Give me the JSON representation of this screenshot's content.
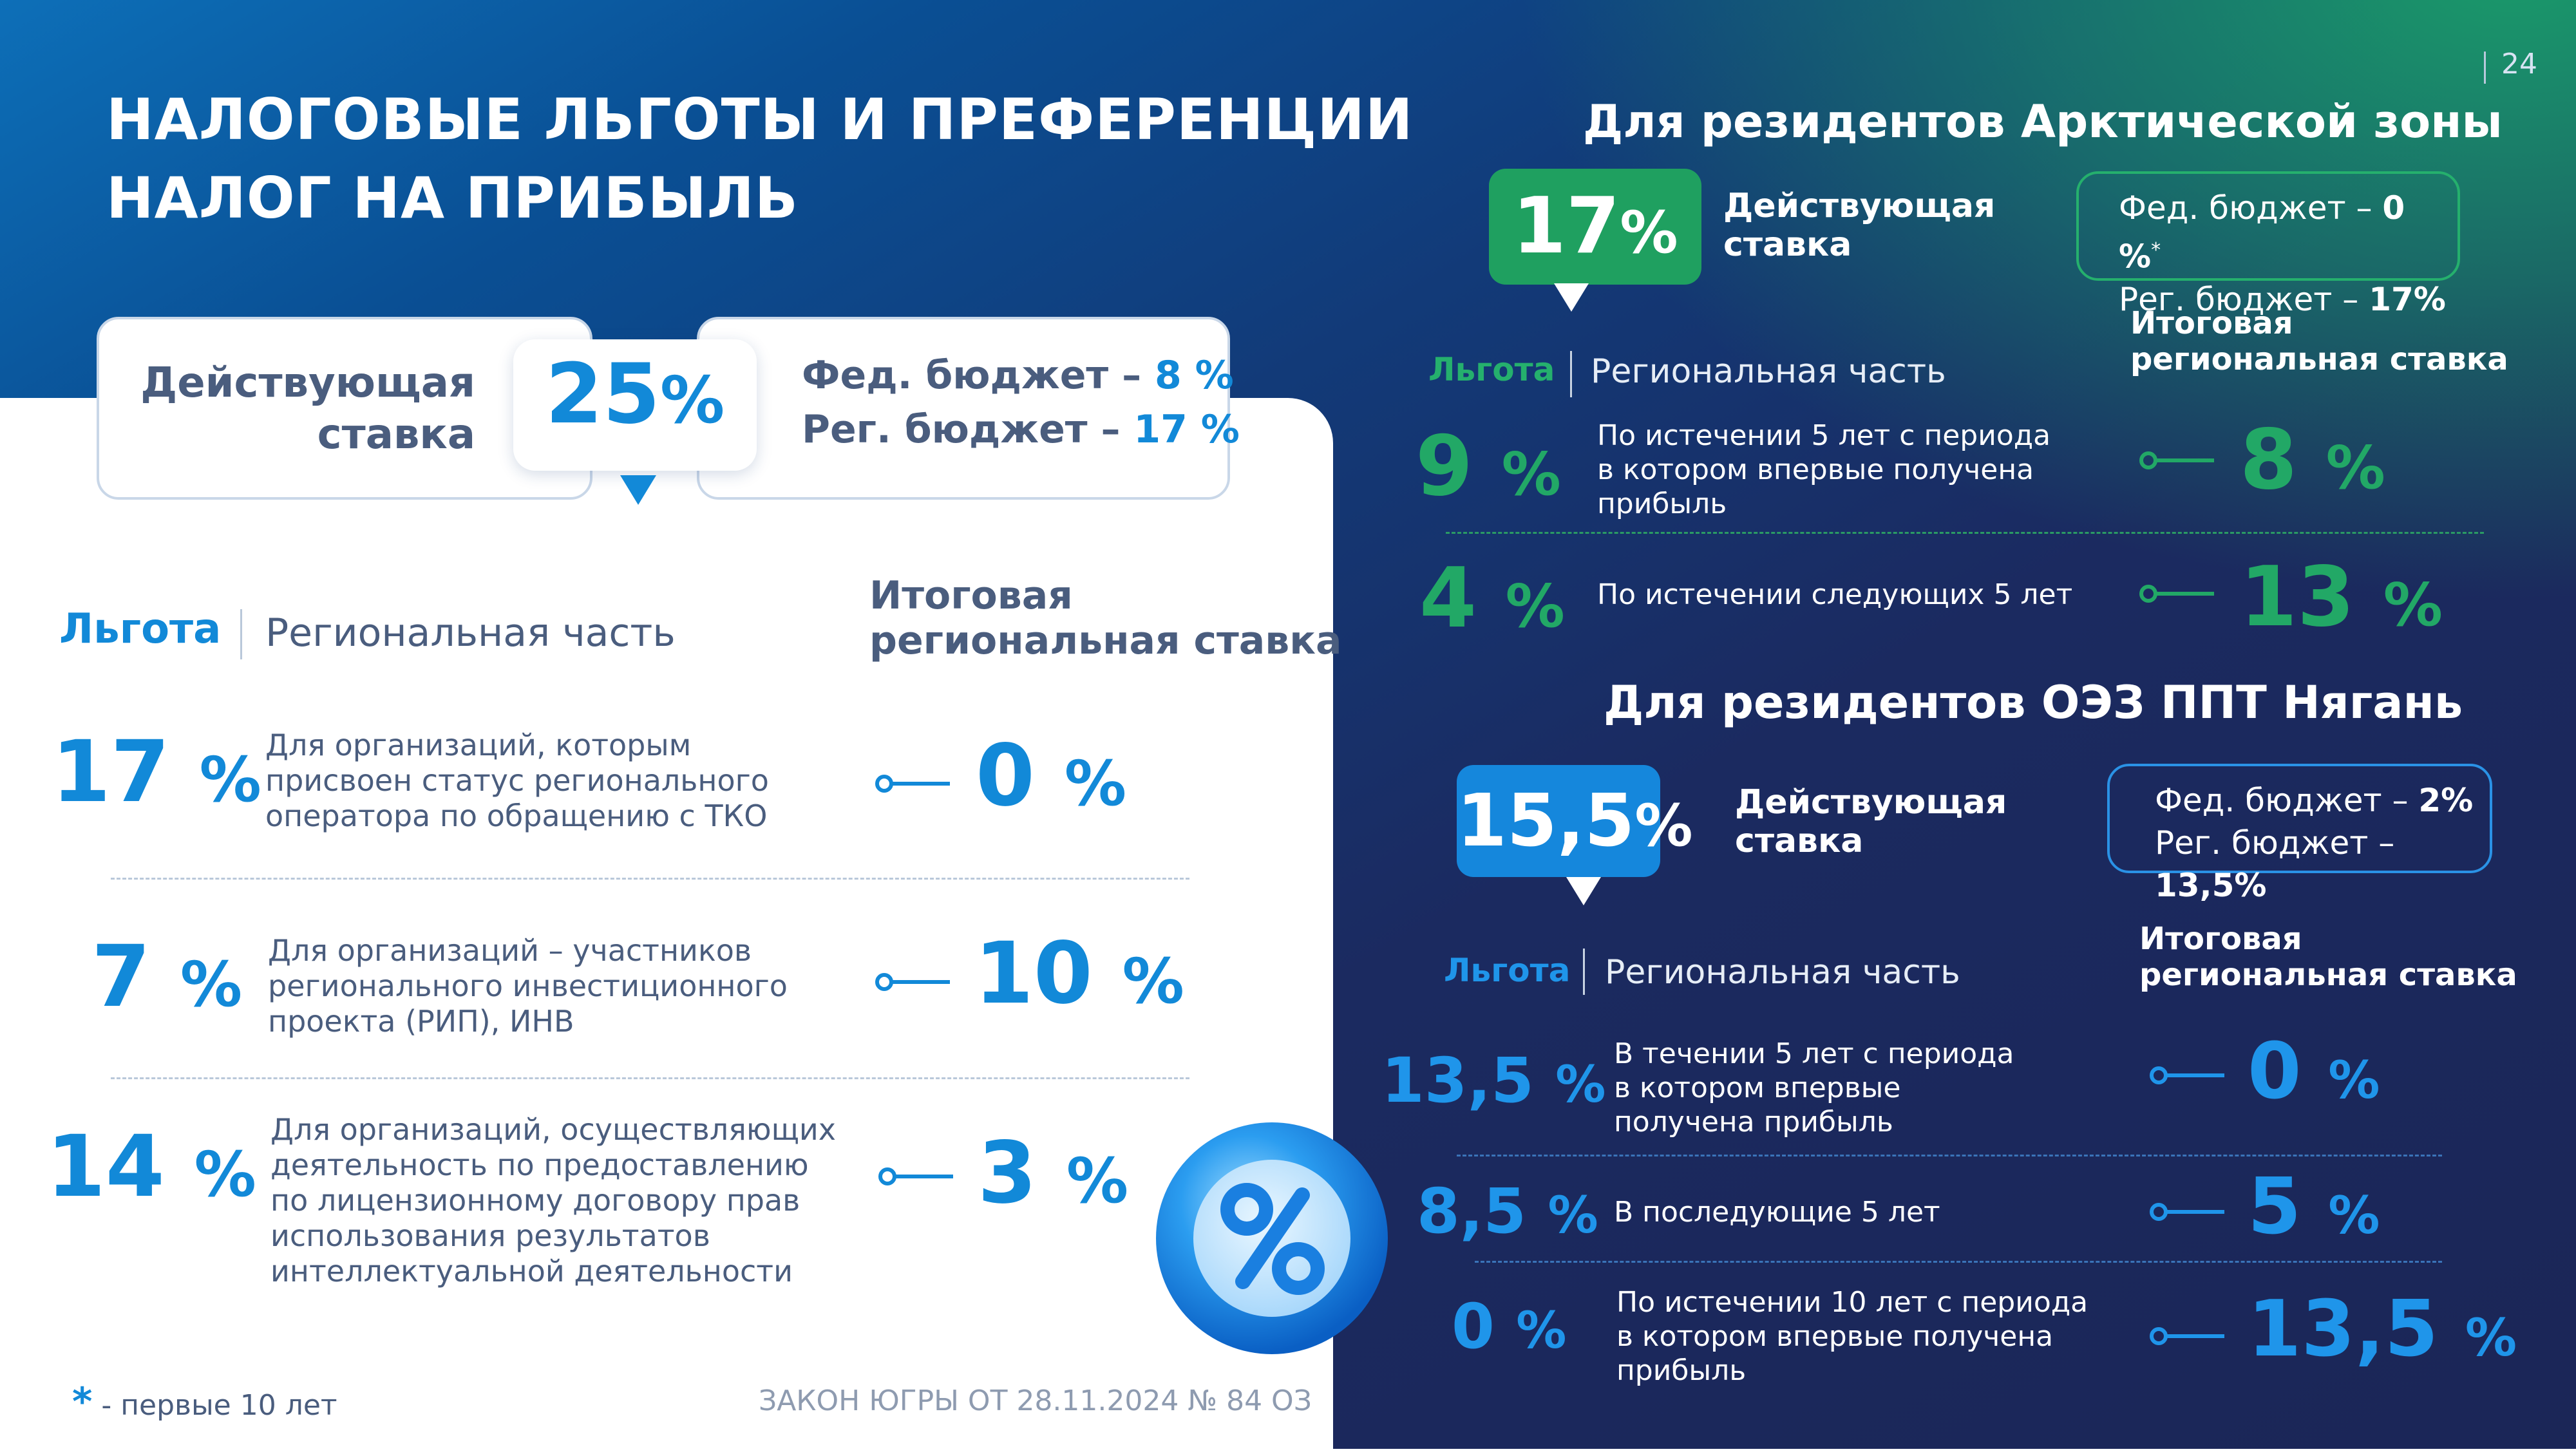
{
  "page": {
    "number": "24",
    "title_line1": "НАЛОГОВЫЕ ЛЬГОТЫ И ПРЕФЕРЕНЦИИ",
    "title_line2": "НАЛОГ НА ПРИБЫЛЬ"
  },
  "left": {
    "current_label_line1": "Действующая",
    "current_label_line2": "ставка",
    "current_rate": "25",
    "pct": "%",
    "fed_label": "Фед. бюджет – ",
    "fed_value": "8 %",
    "reg_label": "Рег. бюджет – ",
    "reg_value": "17 %",
    "header_benefit": "Льгота",
    "header_regional": "Региональная часть",
    "header_total_line1": "Итоговая",
    "header_total_line2": "региональная ставка",
    "rows": [
      {
        "benefit": "17",
        "desc": [
          "Для организаций, которым",
          "присвоен статус регионального",
          "оператора по  обращению с ТКО"
        ],
        "total": "0"
      },
      {
        "benefit": "7",
        "desc": [
          "Для организаций – участников",
          "регионального инвестиционного",
          "проекта (РИП), ИНВ"
        ],
        "total": "10"
      },
      {
        "benefit": "14",
        "desc": [
          "Для организаций, осуществляющих",
          "деятельность по предоставлению",
          "по лицензионному договору прав",
          "использования результатов",
          "интеллектуальной деятельности"
        ],
        "total": "3"
      }
    ],
    "footnote_star": "*",
    "footnote_text": " - первые 10 лет",
    "law": "ЗАКОН ЮГРЫ ОТ 28.11.2024 № 84 ОЗ"
  },
  "arctic": {
    "heading": "Для резидентов Арктической зоны",
    "current_rate": "17",
    "pct": "%",
    "current_label_line1": "Действующая",
    "current_label_line2": "ставка",
    "fed_label": "Фед. бюджет – ",
    "fed_value": "0 %",
    "fed_star": "*",
    "reg_label": "Рег. бюджет – ",
    "reg_value": "17%",
    "header_benefit": "Льгота",
    "header_regional": "Региональная часть",
    "header_total_line1": "Итоговая",
    "header_total_line2": "региональная ставка",
    "rows": [
      {
        "benefit": "9",
        "desc": [
          "По истечении 5 лет с периода",
          "в котором впервые получена",
          "прибыль"
        ],
        "total": "8"
      },
      {
        "benefit": "4",
        "desc": [
          "По истечении следующих 5 лет"
        ],
        "total": "13"
      }
    ]
  },
  "nyagan": {
    "heading": "Для резидентов ОЭЗ ППТ Нягань",
    "current_rate": "15,5",
    "pct": "%",
    "current_label_line1": "Действующая",
    "current_label_line2": "ставка",
    "fed_label": "Фед. бюджет – ",
    "fed_value": "2%",
    "reg_label": "Рег. бюджет – ",
    "reg_value": "13,5%",
    "header_benefit": "Льгота",
    "header_regional": "Региональная часть",
    "header_total_line1": "Итоговая",
    "header_total_line2": "региональная ставка",
    "rows": [
      {
        "benefit": "13,5",
        "desc": [
          "В течении 5 лет с периода",
          "в котором впервые",
          "получена прибыль"
        ],
        "total": "0"
      },
      {
        "benefit": "8,5",
        "desc": [
          "В последующие 5 лет"
        ],
        "total": "5"
      },
      {
        "benefit": "0",
        "desc": [
          "По истечении 10 лет с периода",
          "в котором впервые получена",
          "прибыль"
        ],
        "total": "13,5"
      }
    ]
  },
  "colors": {
    "blue": "#1289d8",
    "green": "#22a866",
    "navy": "#1b2657",
    "slate": "#4a5d7e"
  },
  "icons": {
    "percent_badge": "percent-badge-icon",
    "connector": "arrow-connector-icon"
  }
}
